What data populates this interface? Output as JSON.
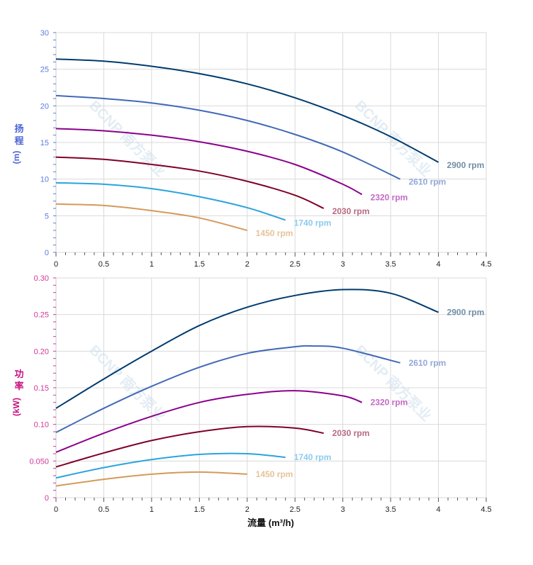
{
  "watermark": "BCNP 南方泵业",
  "chart_data": [
    {
      "type": "line",
      "ylabel_chars": [
        "扬",
        "程"
      ],
      "ylabel_unit": "(m)",
      "xlim": [
        0,
        4.5
      ],
      "ylim": [
        0,
        30
      ],
      "xticks": [
        "0",
        "0.5",
        "1",
        "1.5",
        "2",
        "2.5",
        "3",
        "3.5",
        "4",
        "4.5"
      ],
      "yticks": [
        "0",
        "5",
        "10",
        "15",
        "20",
        "25",
        "30"
      ],
      "grid": true,
      "tick_color": "#5a7be0",
      "series": [
        {
          "name": "2900 rpm",
          "color": "#003b6f",
          "label_color": "#6f8fa8",
          "x": [
            0,
            0.5,
            1,
            1.5,
            2,
            2.5,
            3,
            3.5,
            4
          ],
          "y": [
            26.4,
            26.1,
            25.4,
            24.4,
            23.0,
            21.1,
            18.7,
            15.8,
            12.3
          ]
        },
        {
          "name": "2610 rpm",
          "color": "#4169b8",
          "label_color": "#93a8d8",
          "x": [
            0,
            0.5,
            1,
            1.5,
            2,
            2.5,
            3,
            3.6
          ],
          "y": [
            21.4,
            21.0,
            20.4,
            19.4,
            18.0,
            16.1,
            13.7,
            10.0
          ]
        },
        {
          "name": "2320 rpm",
          "color": "#8b008b",
          "label_color": "#c46ac4",
          "x": [
            0,
            0.5,
            1,
            1.5,
            2,
            2.5,
            3,
            3.2
          ],
          "y": [
            16.9,
            16.6,
            16.0,
            15.1,
            13.8,
            12.0,
            9.3,
            7.9
          ]
        },
        {
          "name": "2030 rpm",
          "color": "#800026",
          "label_color": "#b86a80",
          "x": [
            0,
            0.5,
            1,
            1.5,
            2,
            2.5,
            2.8
          ],
          "y": [
            13.0,
            12.7,
            12.0,
            11.1,
            9.7,
            7.8,
            6.0
          ]
        },
        {
          "name": "1740 rpm",
          "color": "#2ba3de",
          "label_color": "#8ccbee",
          "x": [
            0,
            0.5,
            1,
            1.5,
            2,
            2.4
          ],
          "y": [
            9.5,
            9.3,
            8.7,
            7.6,
            6.1,
            4.4
          ]
        },
        {
          "name": "1450 rpm",
          "color": "#d49a5a",
          "label_color": "#e6c39a",
          "x": [
            0,
            0.5,
            1,
            1.5,
            2
          ],
          "y": [
            6.6,
            6.4,
            5.7,
            4.7,
            3.0
          ]
        }
      ]
    },
    {
      "type": "line",
      "ylabel_chars": [
        "功",
        "率"
      ],
      "ylabel_unit": "(kW)",
      "xlabel": "流量 (m³/h)",
      "xlim": [
        0,
        4.5
      ],
      "ylim": [
        0,
        0.3
      ],
      "xticks": [
        "0",
        "0.5",
        "1",
        "1.5",
        "2",
        "2.5",
        "3",
        "3.5",
        "4",
        "4.5"
      ],
      "yticks": [
        "0",
        "0.050",
        "0.10",
        "0.15",
        "0.20",
        "0.25",
        "0.30"
      ],
      "grid": true,
      "tick_color": "#d1369a",
      "series": [
        {
          "name": "2900 rpm",
          "color": "#003b6f",
          "label_color": "#6f8fa8",
          "x": [
            0,
            0.5,
            1,
            1.5,
            2,
            2.5,
            3,
            3.5,
            4
          ],
          "y": [
            0.122,
            0.162,
            0.2,
            0.235,
            0.26,
            0.276,
            0.284,
            0.279,
            0.253
          ]
        },
        {
          "name": "2610 rpm",
          "color": "#4169b8",
          "label_color": "#93a8d8",
          "x": [
            0,
            0.5,
            1,
            1.5,
            2,
            2.5,
            2.7,
            3,
            3.6
          ],
          "y": [
            0.089,
            0.122,
            0.152,
            0.178,
            0.197,
            0.206,
            0.207,
            0.204,
            0.184
          ]
        },
        {
          "name": "2320 rpm",
          "color": "#8b008b",
          "label_color": "#c46ac4",
          "x": [
            0,
            0.5,
            1,
            1.5,
            2,
            2.5,
            3,
            3.2
          ],
          "y": [
            0.062,
            0.088,
            0.111,
            0.13,
            0.141,
            0.146,
            0.139,
            0.13
          ]
        },
        {
          "name": "2030 rpm",
          "color": "#800026",
          "label_color": "#b86a80",
          "x": [
            0,
            0.5,
            1,
            1.5,
            2,
            2.5,
            2.8
          ],
          "y": [
            0.042,
            0.061,
            0.078,
            0.09,
            0.097,
            0.095,
            0.088
          ]
        },
        {
          "name": "1740 rpm",
          "color": "#2ba3de",
          "label_color": "#8ccbee",
          "x": [
            0,
            0.5,
            1,
            1.5,
            2,
            2.4
          ],
          "y": [
            0.027,
            0.041,
            0.052,
            0.059,
            0.06,
            0.055
          ]
        },
        {
          "name": "1450 rpm",
          "color": "#d49a5a",
          "label_color": "#e6c39a",
          "x": [
            0,
            0.5,
            1,
            1.5,
            2
          ],
          "y": [
            0.016,
            0.025,
            0.032,
            0.035,
            0.032
          ]
        }
      ]
    }
  ]
}
